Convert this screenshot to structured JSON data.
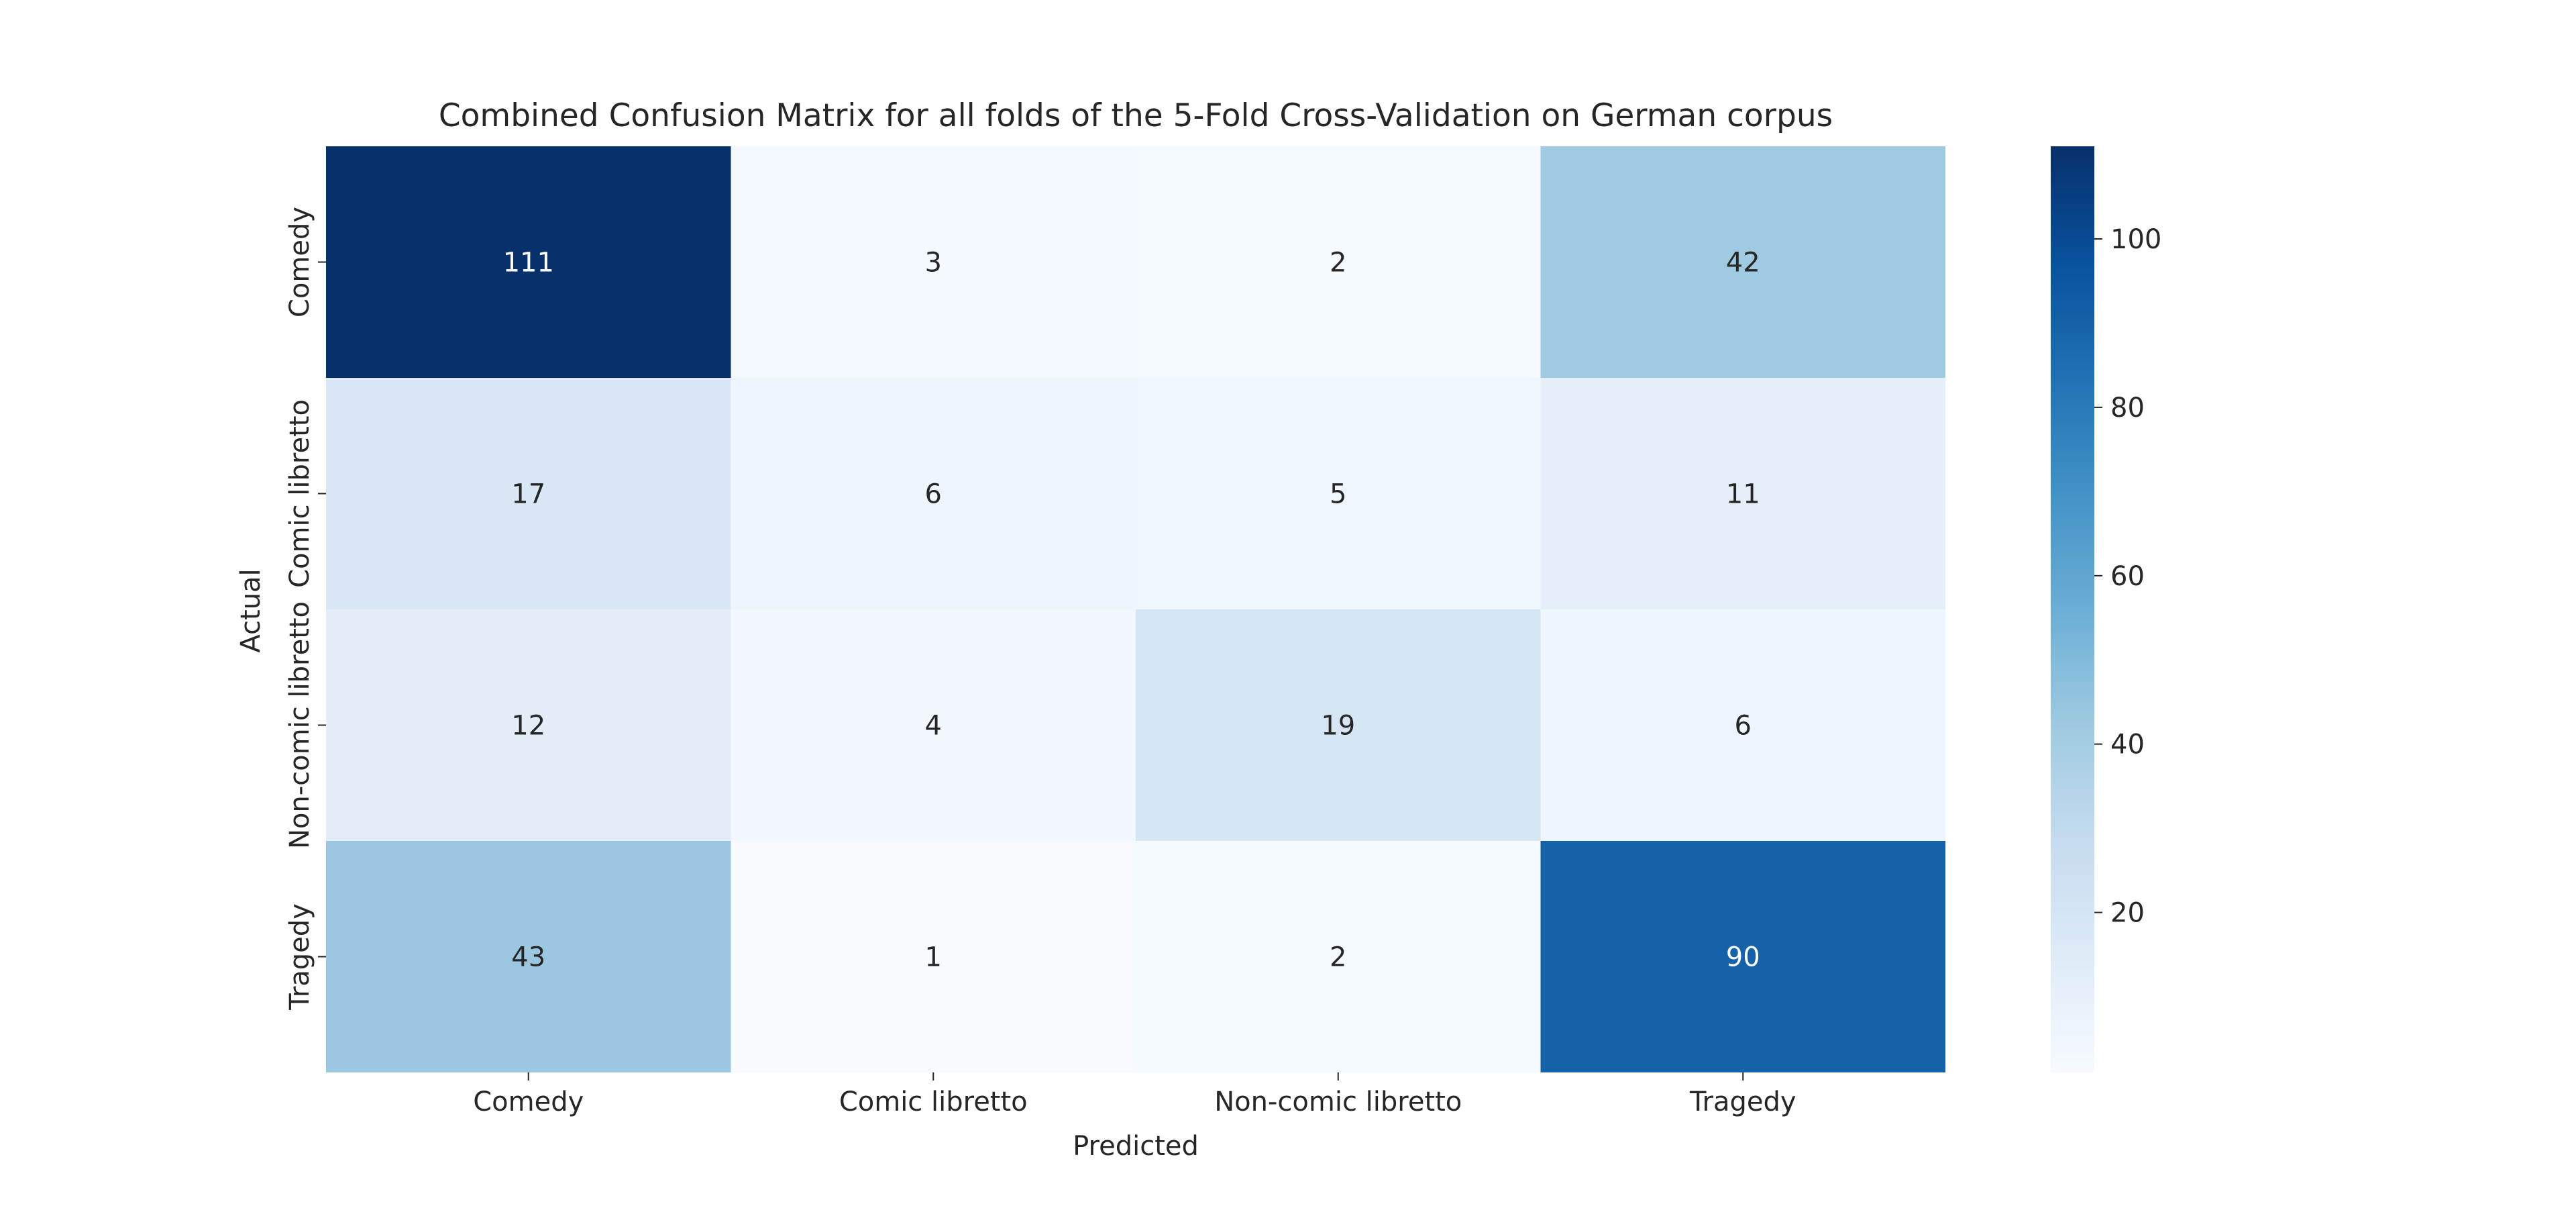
{
  "chart_data": {
    "type": "heatmap",
    "title": "Combined Confusion Matrix for all folds of the 5-Fold Cross-Validation on German corpus",
    "xlabel": "Predicted",
    "ylabel": "Actual",
    "x_categories": [
      "Comedy",
      "Comic libretto",
      "Non-comic libretto",
      "Tragedy"
    ],
    "y_categories": [
      "Comedy",
      "Comic libretto",
      "Non-comic libretto",
      "Tragedy"
    ],
    "values": [
      [
        111,
        3,
        2,
        42
      ],
      [
        17,
        6,
        5,
        11
      ],
      [
        12,
        4,
        19,
        6
      ],
      [
        43,
        1,
        2,
        90
      ]
    ],
    "colormap": "Blues",
    "color_range": [
      1,
      111
    ],
    "colorbar_ticks": [
      20,
      40,
      60,
      80,
      100
    ]
  }
}
